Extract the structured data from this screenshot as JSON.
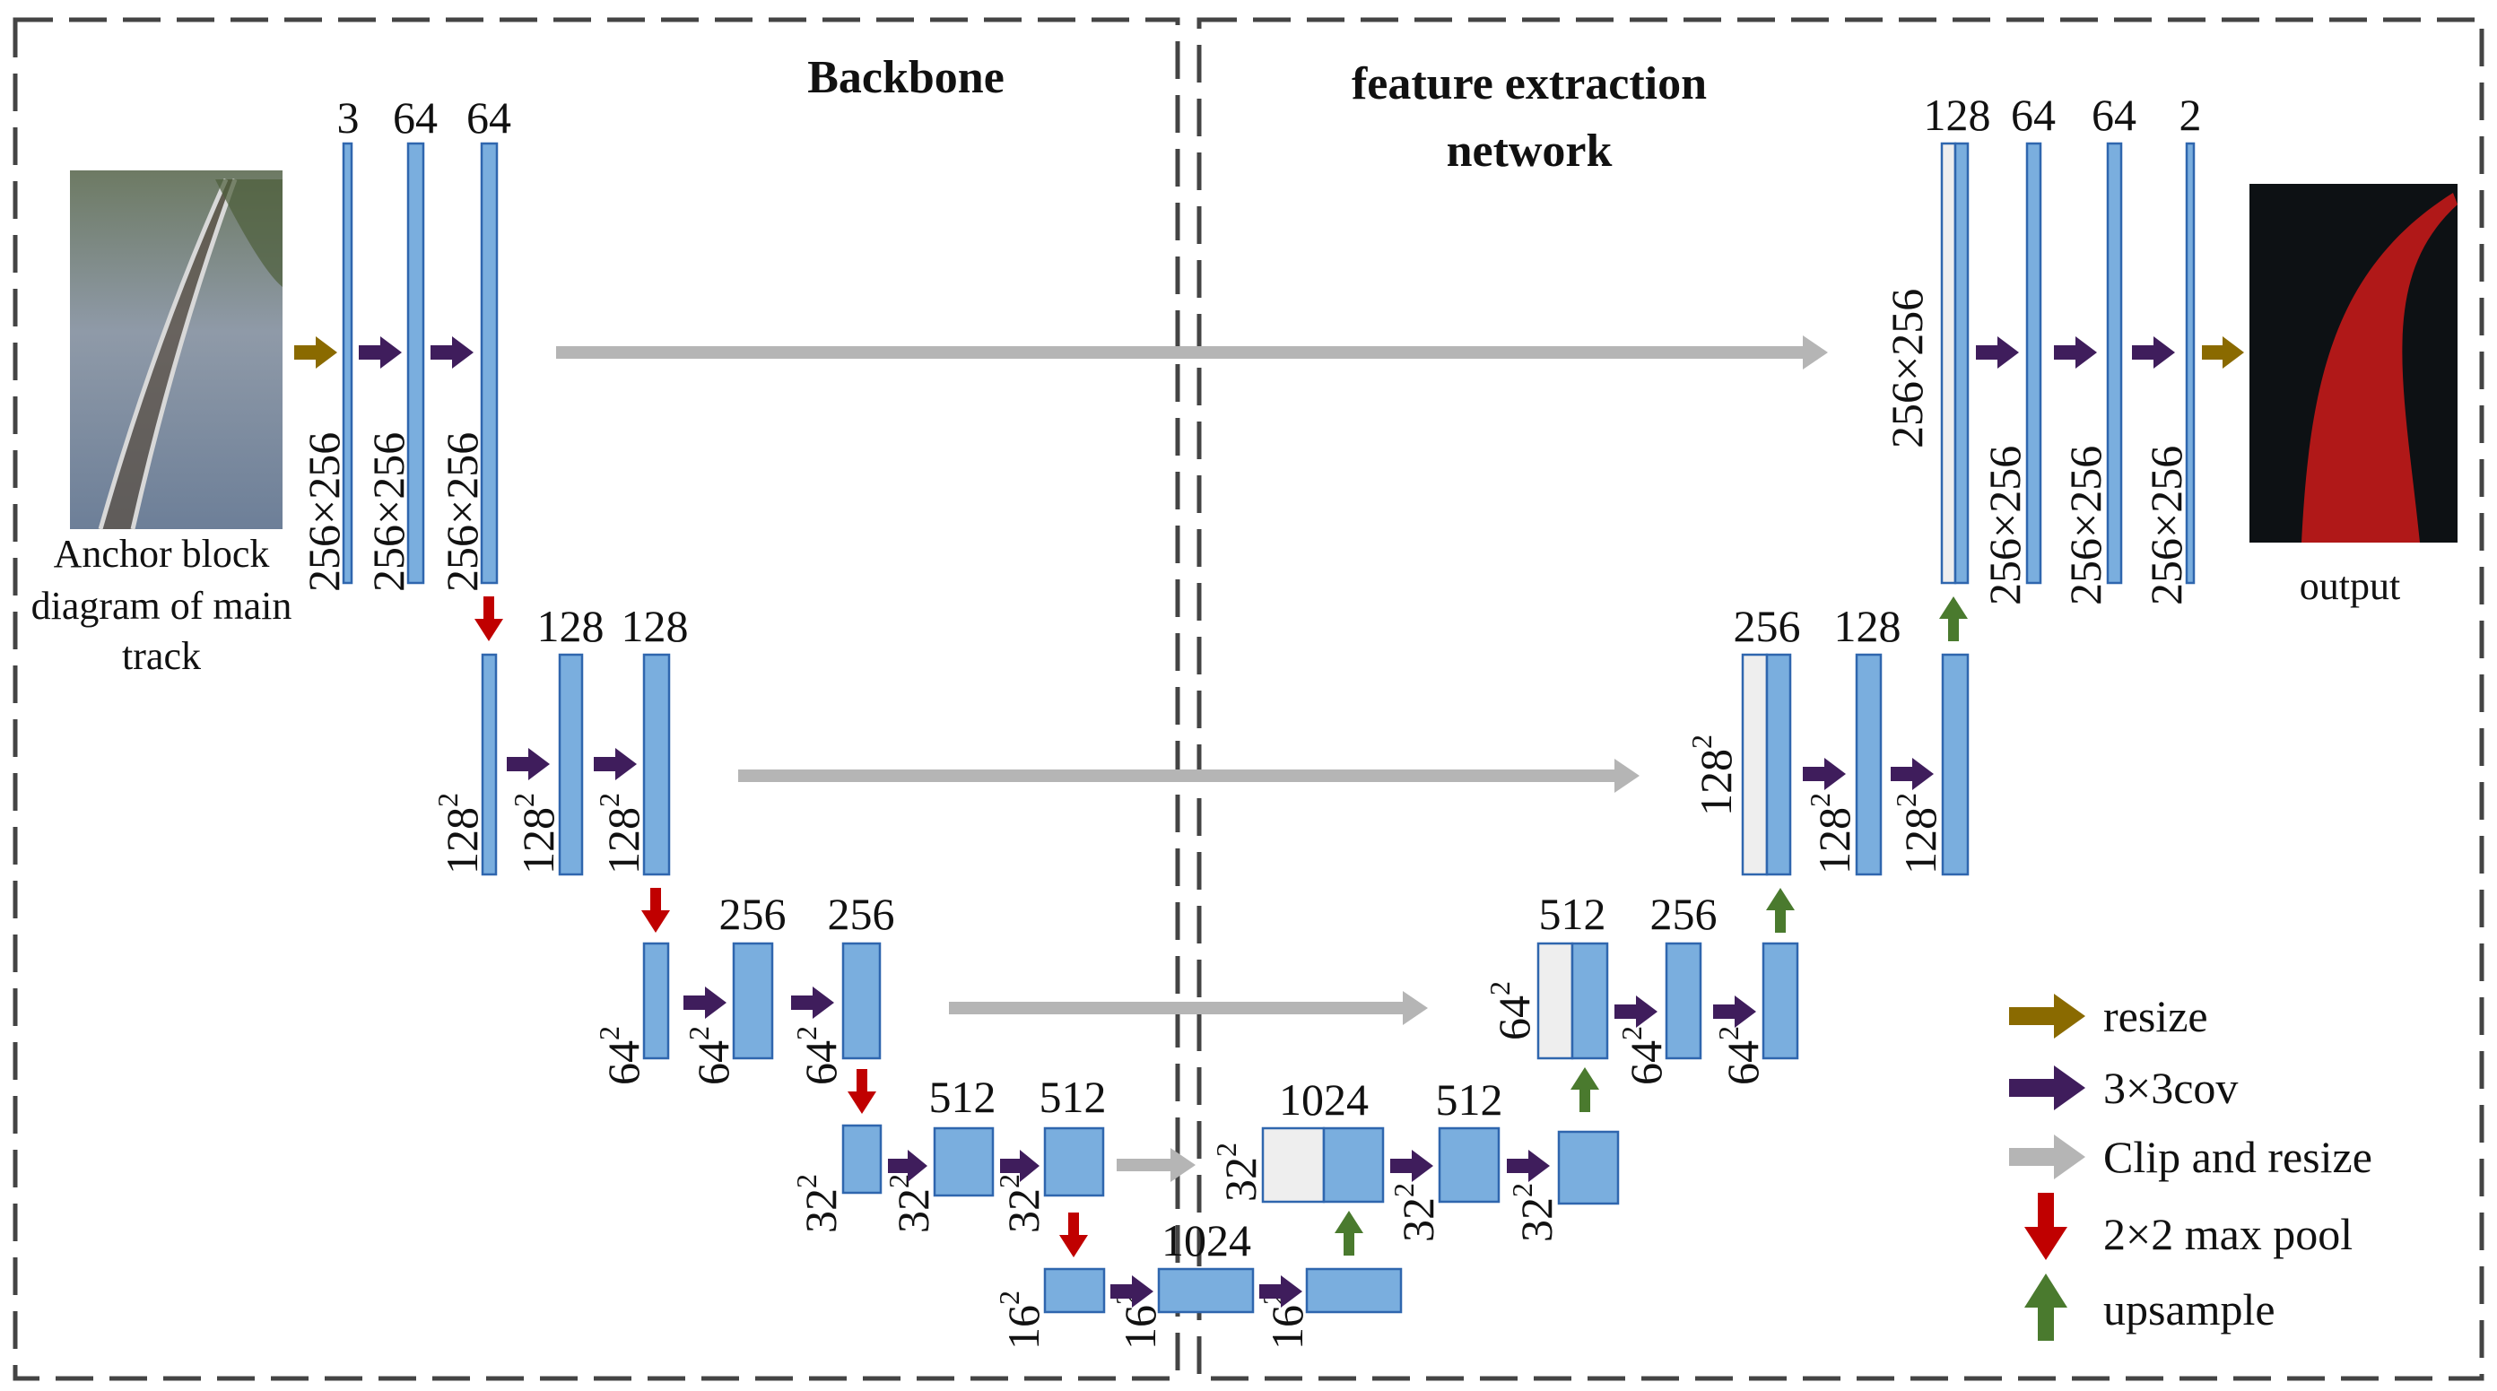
{
  "titles": {
    "backbone": "Backbone",
    "feature_line1": "feature extraction",
    "feature_line2": "network"
  },
  "input": {
    "caption_line1": "Anchor block",
    "caption_line2": "diagram of main",
    "caption_line3": "track"
  },
  "output": {
    "caption": "output"
  },
  "encoder": {
    "level1": {
      "channels": [
        "3",
        "64",
        "64"
      ],
      "sizes": [
        "256×256",
        "256×256",
        "256×256"
      ]
    },
    "level2": {
      "channels": [
        "128",
        "128"
      ],
      "sizes": [
        "128",
        "128",
        "128"
      ]
    },
    "level3": {
      "channels": [
        "256",
        "256"
      ],
      "sizes": [
        "64",
        "64",
        "64"
      ]
    },
    "level4": {
      "channels": [
        "512",
        "512"
      ],
      "sizes": [
        "32",
        "32",
        "32"
      ]
    },
    "level5": {
      "channels": [
        "1024"
      ],
      "sizes": [
        "16",
        "16",
        "16"
      ]
    }
  },
  "decoder": {
    "level4": {
      "channels": [
        "1024",
        "512"
      ],
      "sizes": [
        "32",
        "32",
        "32"
      ]
    },
    "level3": {
      "channels": [
        "512",
        "256"
      ],
      "sizes": [
        "64",
        "64",
        "64"
      ]
    },
    "level2": {
      "channels": [
        "256",
        "128"
      ],
      "sizes": [
        "128",
        "128",
        "128"
      ]
    },
    "level1": {
      "channels": [
        "128",
        "64",
        "64",
        "2"
      ],
      "sizes": [
        "256×256",
        "256×256",
        "256×256",
        "256×256"
      ]
    }
  },
  "exponent": "2",
  "legend": [
    {
      "label": "resize",
      "color": "#8a6a00",
      "icon": "right-arrow-icon"
    },
    {
      "label": "3×3cov",
      "color": "#3f1d5c",
      "icon": "right-arrow-icon"
    },
    {
      "label": "Clip and resize",
      "color": "#b5b5b5",
      "icon": "right-arrow-icon"
    },
    {
      "label": "2×2 max pool",
      "color": "#c00000",
      "icon": "down-arrow-icon"
    },
    {
      "label": "upsample",
      "color": "#4a7a2e",
      "icon": "up-arrow-icon"
    }
  ],
  "colors": {
    "block_fill": "#7aaede",
    "block_stroke": "#2f66ae",
    "copy_fill": "#eeeeee",
    "resize": "#8a6a00",
    "conv": "#3f1d5c",
    "skip": "#b5b5b5",
    "pool": "#c00000",
    "upsample": "#4a7a2e"
  }
}
